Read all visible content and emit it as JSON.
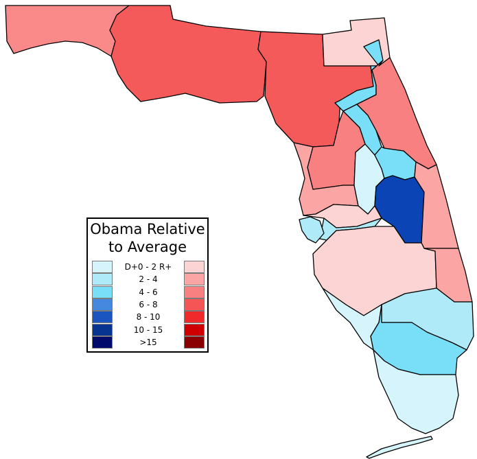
{
  "legend": {
    "title_line1": "Obama Relative",
    "title_line2": "to Average",
    "rows": [
      {
        "label": "D+0 - 2 R+",
        "dem_color": "#d6f4fb",
        "rep_color": "#fdd4d4"
      },
      {
        "label": "2 - 4",
        "dem_color": "#aeeaf7",
        "rep_color": "#fba5a5"
      },
      {
        "label": "4 - 6",
        "dem_color": "#79def7",
        "rep_color": "#f98080"
      },
      {
        "label": "6 - 8",
        "dem_color": "#4588e0",
        "rep_color": "#f55555"
      },
      {
        "label": "8 - 10",
        "dem_color": "#1a55c0",
        "rep_color": "#f02a2a"
      },
      {
        "label": "10 - 15",
        "dem_color": "#063490",
        "rep_color": "#d00000"
      },
      {
        "label": ">15",
        "dem_color": "#000a6a",
        "rep_color": "#8a0000"
      }
    ]
  },
  "districts": [
    {
      "name": "district-panhandle-west",
      "color": "#fa8a8a"
    },
    {
      "name": "district-panhandle-east",
      "color": "#f55a5a"
    },
    {
      "name": "district-big-bend",
      "color": "#f55a5a"
    },
    {
      "name": "district-nassau",
      "color": "#fdd4d4"
    },
    {
      "name": "district-jacksonville",
      "color": "#79def7"
    },
    {
      "name": "district-northeast-coast",
      "color": "#f98080"
    },
    {
      "name": "district-marion",
      "color": "#f98080"
    },
    {
      "name": "district-nature-coast",
      "color": "#fba5a5"
    },
    {
      "name": "district-lake",
      "color": "#d6f4fb"
    },
    {
      "name": "district-orlando-north",
      "color": "#79def7"
    },
    {
      "name": "district-orlando",
      "color": "#0a44b5"
    },
    {
      "name": "district-space-coast",
      "color": "#fba5a5"
    },
    {
      "name": "district-pasco",
      "color": "#fdd4d4"
    },
    {
      "name": "district-tampa",
      "color": "#aeeaf7"
    },
    {
      "name": "district-pinellas",
      "color": "#aeeaf7"
    },
    {
      "name": "district-heartland",
      "color": "#fdd4d4"
    },
    {
      "name": "district-treasure-coast",
      "color": "#fba5a5"
    },
    {
      "name": "district-palm-beach",
      "color": "#aeeaf7"
    },
    {
      "name": "district-broward",
      "color": "#79def7"
    },
    {
      "name": "district-southwest",
      "color": "#d6f4fb"
    },
    {
      "name": "district-miami-keys",
      "color": "#d6f4fb"
    }
  ]
}
